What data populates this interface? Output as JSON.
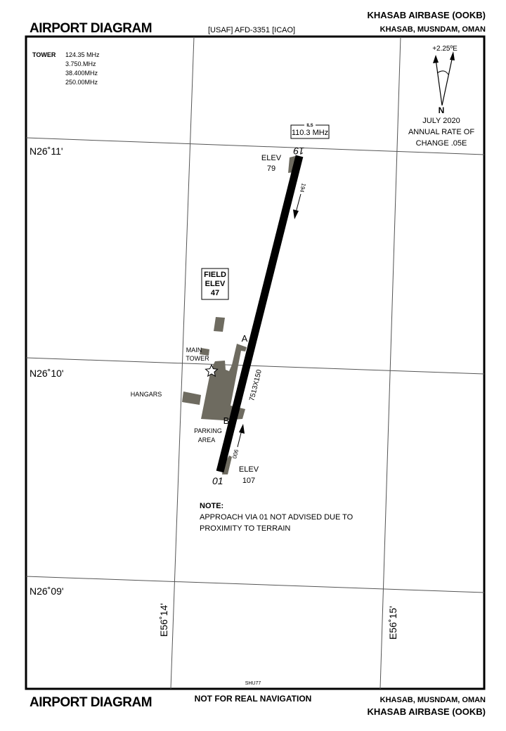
{
  "header": {
    "title": "AIRPORT DIAGRAM",
    "publication": "[USAF] AFD-3351 [ICAO]",
    "airport_name": "KHASAB AIRBASE (OOKB)",
    "location": "KHASAB, MUSNDAM, OMAN"
  },
  "footer": {
    "title": "AIRPORT DIAGRAM",
    "notice": "NOT FOR REAL NAVIGATION",
    "location": "KHASAB, MUSNDAM, OMAN",
    "airport_name": "KHASAB AIRBASE (OOKB)",
    "code": "SHU77"
  },
  "frequencies": {
    "label": "TOWER",
    "values": [
      "124.35 MHz",
      "3.750.MHz",
      "38.400MHz",
      "250.00MHz"
    ]
  },
  "compass": {
    "variation": "+2.25ºE",
    "north_label": "N",
    "date": "JULY 2020",
    "rate_line1": "ANNUAL RATE OF",
    "rate_line2": "CHANGE .05E"
  },
  "grid": {
    "latitudes": [
      "N26˚11'",
      "N26˚10'",
      "N26˚09'"
    ],
    "longitudes": [
      "E56˚14'",
      "E56˚15'"
    ]
  },
  "ils": {
    "label": "ILS",
    "frequency": "110.3 MHz"
  },
  "runway": {
    "dimensions": "7513X150",
    "end_north": {
      "designator": "19",
      "elev_label": "ELEV",
      "elev": "79",
      "heading": "194"
    },
    "end_south": {
      "designator": "01",
      "elev_label": "ELEV",
      "elev": "107",
      "heading": "006"
    }
  },
  "field_elev": {
    "line1": "FIELD",
    "line2": "ELEV",
    "value": "47"
  },
  "labels": {
    "taxiway_a": "A",
    "taxiway_b": "B",
    "main_tower_1": "MAIN",
    "main_tower_2": "TOWER",
    "hangars": "HANGARS",
    "parking_1": "PARKING",
    "parking_2": "AREA"
  },
  "note": {
    "title": "NOTE:",
    "line1": "APPROACH VIA 01 NOT ADVISED DUE TO",
    "line2": "PROXIMITY TO TERRAIN"
  }
}
